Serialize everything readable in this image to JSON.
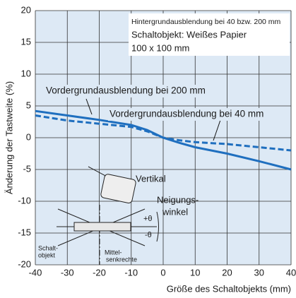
{
  "chart_data": {
    "type": "line",
    "y_label": "Änderung der Tastweite (%)",
    "x_label": "Größe des Schaltobjekts (mm)",
    "xlim": [
      -40,
      40
    ],
    "ylim": [
      -20,
      20
    ],
    "xticks": [
      -40,
      -30,
      -20,
      -10,
      0,
      10,
      20,
      30,
      40
    ],
    "yticks": [
      -20,
      -15,
      -10,
      -5,
      0,
      5,
      10,
      15,
      20
    ],
    "grid": true,
    "x": [
      -40,
      -30,
      -20,
      -10,
      -5,
      0,
      5,
      10,
      20,
      30,
      40
    ],
    "series": [
      {
        "name": "Vordergrundausblendung bei 200 mm",
        "color": "#1f6fbf",
        "dash": false,
        "values": [
          4.2,
          3.5,
          2.8,
          2.0,
          1.2,
          0,
          -0.8,
          -1.5,
          -2.5,
          -3.7,
          -5.0
        ]
      },
      {
        "name": "Vordergrundausblendung bei 40 mm",
        "color": "#1f6fbf",
        "dash": true,
        "values": [
          3.5,
          2.7,
          2.2,
          1.7,
          1.0,
          0,
          -0.4,
          -0.7,
          -1.0,
          -1.5,
          -2.0
        ]
      }
    ],
    "inset": [
      "Hintergrundausblendung bei 40 bzw. 200 mm",
      "Schaltobjekt: Weißes Papier",
      "100 x 100 mm"
    ],
    "diagram": {
      "vertical": "Vertikal",
      "tilt": [
        "Neigungs-",
        "winkel"
      ],
      "plus": "+θ",
      "minus": "-θ",
      "object": [
        "Schalt-",
        "objekt"
      ],
      "perpendicular": [
        "Mittel-",
        "senkrechte"
      ]
    }
  }
}
